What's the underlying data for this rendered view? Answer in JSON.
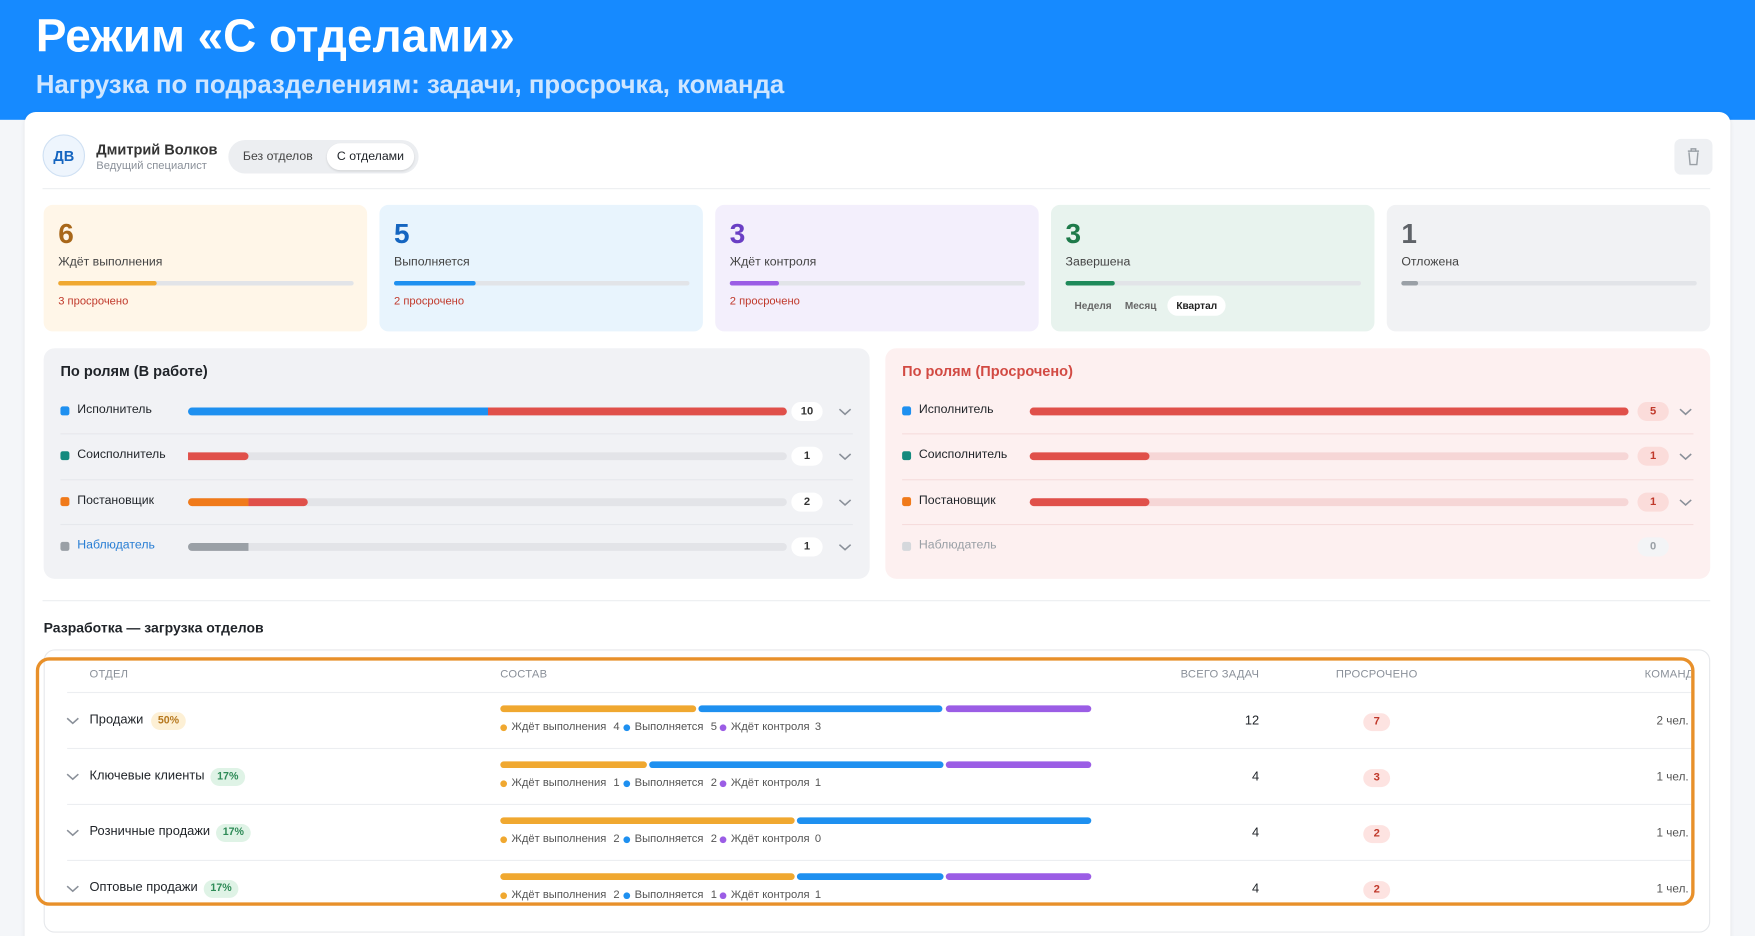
{
  "header": {
    "title": "Режим «С отделами»",
    "subtitle": "Нагрузка по подразделениям: задачи, просрочка, команда"
  },
  "user": {
    "initials": "ДВ",
    "name": "Дмитрий Волков",
    "role": "Ведущий специалист"
  },
  "mode_toggle": {
    "options": [
      "Без отделов",
      "С отделами"
    ],
    "active": 1
  },
  "status_cards": [
    {
      "count": 6,
      "label": "Ждёт выполнения",
      "note": "3 просрочено",
      "color": "#f0a830",
      "text_color": "#a8671a",
      "bg": "#fff6e8"
    },
    {
      "count": 5,
      "label": "Выполняется",
      "note": "2 просрочено",
      "color": "#1e90f0",
      "text_color": "#1565c0",
      "bg": "#e8f4fd"
    },
    {
      "count": 3,
      "label": "Ждёт контроля",
      "note": "2 просрочено",
      "color": "#9b5de5",
      "text_color": "#6a3fc4",
      "bg": "#f3effc"
    },
    {
      "count": 3,
      "label": "Завершена",
      "periods": [
        "Неделя",
        "Месяц",
        "Квартал"
      ],
      "active_period": 2,
      "color": "#1e8a5a",
      "text_color": "#1e7a4a",
      "bg": "#e8f3ee"
    },
    {
      "count": 1,
      "label": "Отложена",
      "color": "#9aa0a6",
      "text_color": "#5f6368",
      "bg": "#f1f2f4"
    }
  ],
  "roles_in_work": {
    "title": "По ролям (В работе)",
    "rows": [
      {
        "name": "Исполнитель",
        "color": "#1e90f0",
        "count": 10,
        "normal": 5,
        "overdue": 5
      },
      {
        "name": "Соисполнитель",
        "color": "#138a7e",
        "count": 1,
        "normal": 0,
        "overdue": 1
      },
      {
        "name": "Постановщик",
        "color": "#f07a1a",
        "count": 2,
        "normal": 1,
        "overdue": 1
      },
      {
        "name": "Наблюдатель",
        "color": "#9aa0a6",
        "label_color": "#2a7fd4",
        "count": 1,
        "normal": 1,
        "overdue": 0
      }
    ]
  },
  "roles_overdue": {
    "title": "По ролям (Просрочено)",
    "rows": [
      {
        "name": "Исполнитель",
        "color": "#1e90f0",
        "count": 5
      },
      {
        "name": "Соисполнитель",
        "color": "#138a7e",
        "count": 1
      },
      {
        "name": "Постановщик",
        "color": "#f07a1a",
        "count": 1
      },
      {
        "name": "Наблюдатель",
        "color": "#d5d8dc",
        "count": 0
      }
    ]
  },
  "departments": {
    "title": "Разработка — загрузка отделов",
    "columns": [
      "ОТДЕЛ",
      "СОСТАВ",
      "ВСЕГО ЗАДАЧ",
      "ПРОСРОЧЕНО",
      "КОМАНДА"
    ],
    "composition_keys": [
      "Ждёт выполнения",
      "Выполняется",
      "Ждёт контроля"
    ],
    "composition_colors": [
      "#f0a830",
      "#1e90f0",
      "#9b5de5"
    ],
    "rows": [
      {
        "name": "Продажи",
        "share": "50%",
        "share_tone": "warning",
        "composition": [
          4,
          5,
          3
        ],
        "total": 12,
        "overdue": 7,
        "team": "2 чел."
      },
      {
        "name": "Ключевые клиенты",
        "share": "17%",
        "share_tone": "normal",
        "composition": [
          1,
          2,
          1
        ],
        "total": 4,
        "overdue": 3,
        "team": "1 чел."
      },
      {
        "name": "Розничные продажи",
        "share": "17%",
        "share_tone": "normal",
        "composition": [
          2,
          2,
          0
        ],
        "total": 4,
        "overdue": 2,
        "team": "1 чел."
      },
      {
        "name": "Оптовые продажи",
        "share": "17%",
        "share_tone": "normal",
        "composition": [
          2,
          1,
          1
        ],
        "total": 4,
        "overdue": 2,
        "team": "1 чел."
      }
    ]
  }
}
